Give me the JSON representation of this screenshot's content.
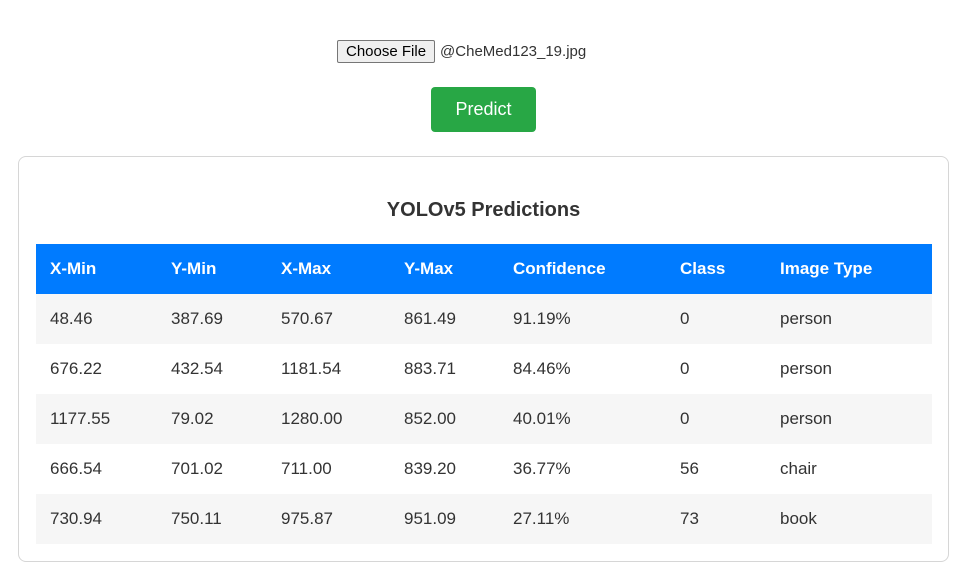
{
  "upload": {
    "button_label": "Choose File",
    "file_name": "@CheMed123_19.jpg"
  },
  "predict_button": {
    "label": "Predict",
    "color": "#28a745"
  },
  "results": {
    "title": "YOLOv5 Predictions",
    "header_color": "#007bff",
    "columns": [
      "X-Min",
      "Y-Min",
      "X-Max",
      "Y-Max",
      "Confidence",
      "Class",
      "Image Type"
    ],
    "rows": [
      [
        "48.46",
        "387.69",
        "570.67",
        "861.49",
        "91.19%",
        "0",
        "person"
      ],
      [
        "676.22",
        "432.54",
        "1181.54",
        "883.71",
        "84.46%",
        "0",
        "person"
      ],
      [
        "1177.55",
        "79.02",
        "1280.00",
        "852.00",
        "40.01%",
        "0",
        "person"
      ],
      [
        "666.54",
        "701.02",
        "711.00",
        "839.20",
        "36.77%",
        "56",
        "chair"
      ],
      [
        "730.94",
        "750.11",
        "975.87",
        "951.09",
        "27.11%",
        "73",
        "book"
      ]
    ]
  }
}
